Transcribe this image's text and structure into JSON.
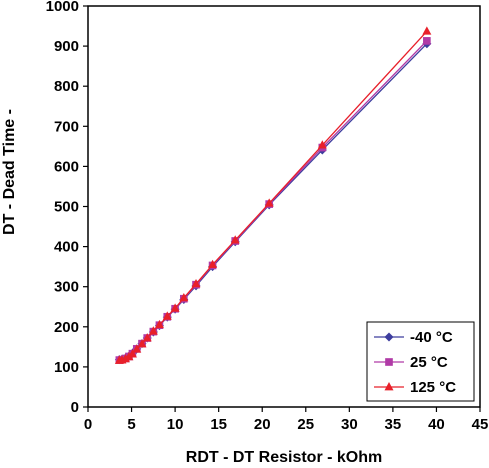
{
  "chart_data": {
    "type": "line",
    "title": "",
    "xlabel": "RDT - DT Resistor - kOhm",
    "ylabel": "DT - Dead Time -",
    "xlim": [
      0,
      45
    ],
    "ylim": [
      0,
      1000
    ],
    "xticks": [
      0,
      5,
      10,
      15,
      20,
      25,
      30,
      35,
      40,
      45
    ],
    "yticks": [
      0,
      100,
      200,
      300,
      400,
      500,
      600,
      700,
      800,
      900,
      1000
    ],
    "grid": false,
    "legend": "bottom-right",
    "series": [
      {
        "name": "-40 °C",
        "color": "#3d3d9e",
        "marker": "diamond",
        "x": [
          3.6,
          3.9,
          4.3,
          4.7,
          5.1,
          5.6,
          6.2,
          6.8,
          7.5,
          8.2,
          9.1,
          10,
          11,
          12.4,
          14.3,
          16.9,
          20.8,
          26.9,
          38.9
        ],
        "y": [
          118,
          119,
          122,
          127,
          134,
          145,
          158,
          172,
          187,
          203,
          224,
          244,
          268,
          302,
          350,
          412,
          504,
          641,
          906
        ]
      },
      {
        "name": "25 °C",
        "color": "#b03aa6",
        "marker": "square",
        "x": [
          3.6,
          3.9,
          4.3,
          4.7,
          5.1,
          5.6,
          6.2,
          6.8,
          7.5,
          8.2,
          9.1,
          10,
          11,
          12.4,
          14.3,
          16.9,
          20.8,
          26.9,
          38.9
        ],
        "y": [
          117,
          118,
          121,
          126,
          133,
          145,
          158,
          172,
          188,
          204,
          225,
          245,
          270,
          305,
          353,
          414,
          506,
          647,
          913
        ]
      },
      {
        "name": "125 °C",
        "color": "#e8202a",
        "marker": "triangle",
        "x": [
          3.6,
          3.9,
          4.3,
          4.7,
          5.1,
          5.6,
          6.2,
          6.8,
          7.5,
          8.2,
          9.1,
          10,
          11,
          12.4,
          14.3,
          16.9,
          20.8,
          26.9,
          38.9
        ],
        "y": [
          116,
          117,
          120,
          125,
          132,
          144,
          157,
          172,
          189,
          205,
          226,
          246,
          272,
          307,
          355,
          416,
          508,
          653,
          937
        ]
      }
    ]
  }
}
